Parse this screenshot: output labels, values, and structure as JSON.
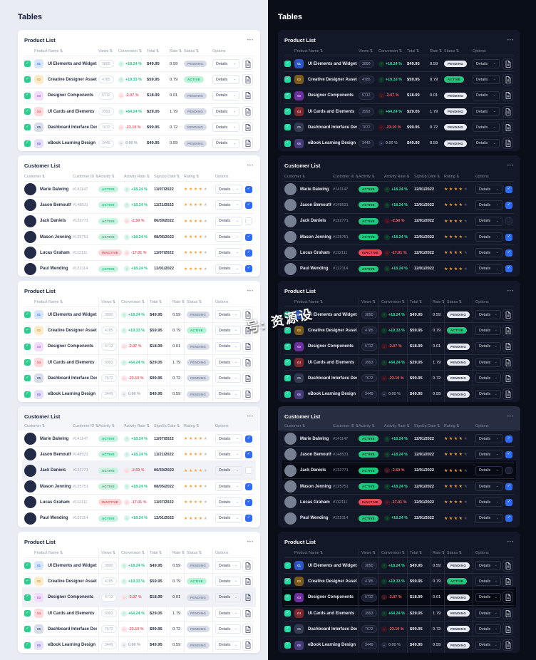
{
  "watermark": "号: 资源设",
  "panels": [
    {
      "theme": "light",
      "heading": "Tables"
    },
    {
      "theme": "dark",
      "heading": "Tables"
    }
  ],
  "ui": {
    "menu_icon": "•••",
    "sort_icon": "⇅",
    "check_icon": "✓",
    "chevron_icon": "⌄",
    "star_icon": "★",
    "details_label": "Details",
    "stars_total": 5,
    "trend_icons": {
      "up": "↑",
      "down": "↓",
      "zero": "•"
    }
  },
  "colors": {
    "positive_green": "#1fc483",
    "negative_red": "#f25767",
    "checkbox_green": "#2ecc8e",
    "checkbox_blue": "#2e6bf6",
    "star_orange": "#f2a33c"
  },
  "product_table": {
    "title": "Product List",
    "headers": [
      "Product Name",
      "Views",
      "Conversion",
      "Total",
      "Rate",
      "Status",
      "Options"
    ],
    "rows": [
      {
        "id": "01",
        "name": "UI Elements and Widgets",
        "views": "3890",
        "trend": "+18.24 %",
        "dir": "up",
        "total": "$49.95",
        "rate": "0.59",
        "status": "PENDING"
      },
      {
        "id": "02",
        "name": "Creative Designer Assets",
        "views": "4785",
        "trend": "+19.33 %",
        "dir": "up",
        "total": "$59.95",
        "rate": "0.79",
        "status": "ACTIVE"
      },
      {
        "id": "03",
        "name": "Designer Components",
        "views": "5712",
        "trend": "-2.07 %",
        "dir": "down",
        "total": "$18.99",
        "rate": "0.01",
        "status": "PENDING"
      },
      {
        "id": "04",
        "name": "UI Cards and Elements",
        "views": "3993",
        "trend": "+64.24 %",
        "dir": "up",
        "total": "$29.05",
        "rate": "1.79",
        "status": "PENDING"
      },
      {
        "id": "05",
        "name": "Dashboard Interface Design",
        "views": "7672",
        "trend": "-23.10 %",
        "dir": "down",
        "total": "$99.95",
        "rate": "0.72",
        "status": "PENDING"
      },
      {
        "id": "06",
        "name": "eBook Learning Design",
        "views": "3449",
        "trend": "0.00 %",
        "dir": "zero",
        "total": "$49.95",
        "rate": "0.59",
        "status": "PENDING"
      }
    ]
  },
  "customer_table": {
    "title": "Customer List",
    "headers": [
      "Customer",
      "Customer ID",
      "Activity",
      "Activity Rate",
      "SignUp Date",
      "Rating",
      "Options"
    ],
    "rows": [
      {
        "name": "Marie Dalwing",
        "id": "#141147",
        "activity": "ACTIVE",
        "trend": "+18.24 %",
        "dir": "up",
        "signup_light": "11/07/2022",
        "signup_dark": "12/01/2022",
        "rating": 4,
        "checked": true
      },
      {
        "name": "Jason Bemouth",
        "id": "#148531",
        "activity": "ACTIVE",
        "trend": "+18.24 %",
        "dir": "up",
        "signup_light": "11/21/2022",
        "signup_dark": "12/01/2022",
        "rating": 4,
        "checked": true
      },
      {
        "name": "Jack Daniels",
        "id": "#122771",
        "activity": "ACTIVE",
        "trend": "-2.50 %",
        "dir": "down",
        "signup_light": "06/30/2022",
        "signup_dark": "12/01/2022",
        "rating": 4,
        "checked": false
      },
      {
        "name": "Mason Jennings",
        "id": "#125751",
        "activity": "ACTIVE",
        "trend": "+18.24 %",
        "dir": "up",
        "signup_light": "08/05/2022",
        "signup_dark": "12/01/2022",
        "rating": 4,
        "checked": true
      },
      {
        "name": "Lucas Graham",
        "id": "#112111",
        "activity": "INACTIVE",
        "trend": "-17.01 %",
        "dir": "down",
        "signup_light": "11/07/2022",
        "signup_dark": "12/01/2022",
        "rating": 4,
        "checked": true
      },
      {
        "name": "Paul Wending",
        "id": "#122114",
        "activity": "ACTIVE",
        "trend": "+18.24 %",
        "dir": "up",
        "signup_light": "12/01/2022",
        "signup_dark": "12/01/2022",
        "rating": 4,
        "checked": true
      }
    ]
  },
  "layout": {
    "selected_row_index": 2,
    "cards": [
      {
        "table": "product",
        "variant": ""
      },
      {
        "table": "customer",
        "variant": ""
      },
      {
        "table": "product",
        "variant": "dividers"
      },
      {
        "table": "customer",
        "variant": "selected header-band"
      },
      {
        "table": "product",
        "variant": "dividers selected"
      }
    ],
    "header_cols": {
      "product": [
        "2 / 4",
        "4",
        "5",
        "6",
        "7",
        "8",
        "9 / 11"
      ],
      "customer": [
        "1 / 3",
        "3",
        "4",
        "5",
        "6",
        "7",
        "8 / 10"
      ]
    }
  }
}
